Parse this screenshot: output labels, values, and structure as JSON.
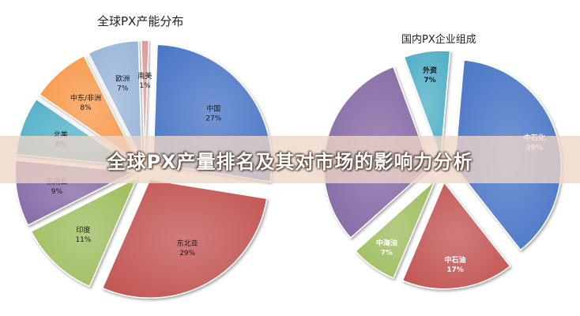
{
  "banner": {
    "text": "全球PX产量排名及其对市场的影响力分析"
  },
  "chart_data": [
    {
      "type": "pie",
      "title": "全球PX产能分布",
      "unit": "%",
      "slices": [
        {
          "label": "中国",
          "value": 27,
          "pct": "27%",
          "color": "#4472C4",
          "exploded": true
        },
        {
          "label": "东北亚",
          "value": 29,
          "pct": "29%",
          "color": "#C0504D",
          "exploded": true
        },
        {
          "label": "印度",
          "value": 11,
          "pct": "11%",
          "color": "#9BBB59",
          "exploded": true
        },
        {
          "label": "东南亚",
          "value": 9,
          "pct": "9%",
          "color": "#8064A2",
          "exploded": true
        },
        {
          "label": "北美",
          "value": 8,
          "pct": "8%",
          "color": "#4BACC6",
          "exploded": true
        },
        {
          "label": "中东/非洲",
          "value": 8,
          "pct": "8%",
          "color": "#F79646",
          "exploded": true
        },
        {
          "label": "欧洲",
          "value": 7,
          "pct": "7%",
          "color": "#95B3D7",
          "exploded": true
        },
        {
          "label": "南美",
          "value": 1,
          "pct": "1%",
          "color": "#D99694",
          "exploded": true
        }
      ]
    },
    {
      "type": "pie",
      "title": "国内PX企业组成",
      "unit": "%",
      "slices": [
        {
          "label": "中石化",
          "value": 38,
          "pct": "38%",
          "color": "#4472C4",
          "exploded": true
        },
        {
          "label": "中石油",
          "value": 17,
          "pct": "17%",
          "color": "#C0504D",
          "exploded": true
        },
        {
          "label": "中海油",
          "value": 7,
          "pct": "7%",
          "color": "#9BBB59",
          "exploded": true
        },
        {
          "label": "",
          "value": 31,
          "pct": "",
          "color": "#8064A2",
          "exploded": true
        },
        {
          "label": "外资",
          "value": 7,
          "pct": "7%",
          "color": "#4BACC6",
          "exploded": true
        }
      ]
    }
  ]
}
